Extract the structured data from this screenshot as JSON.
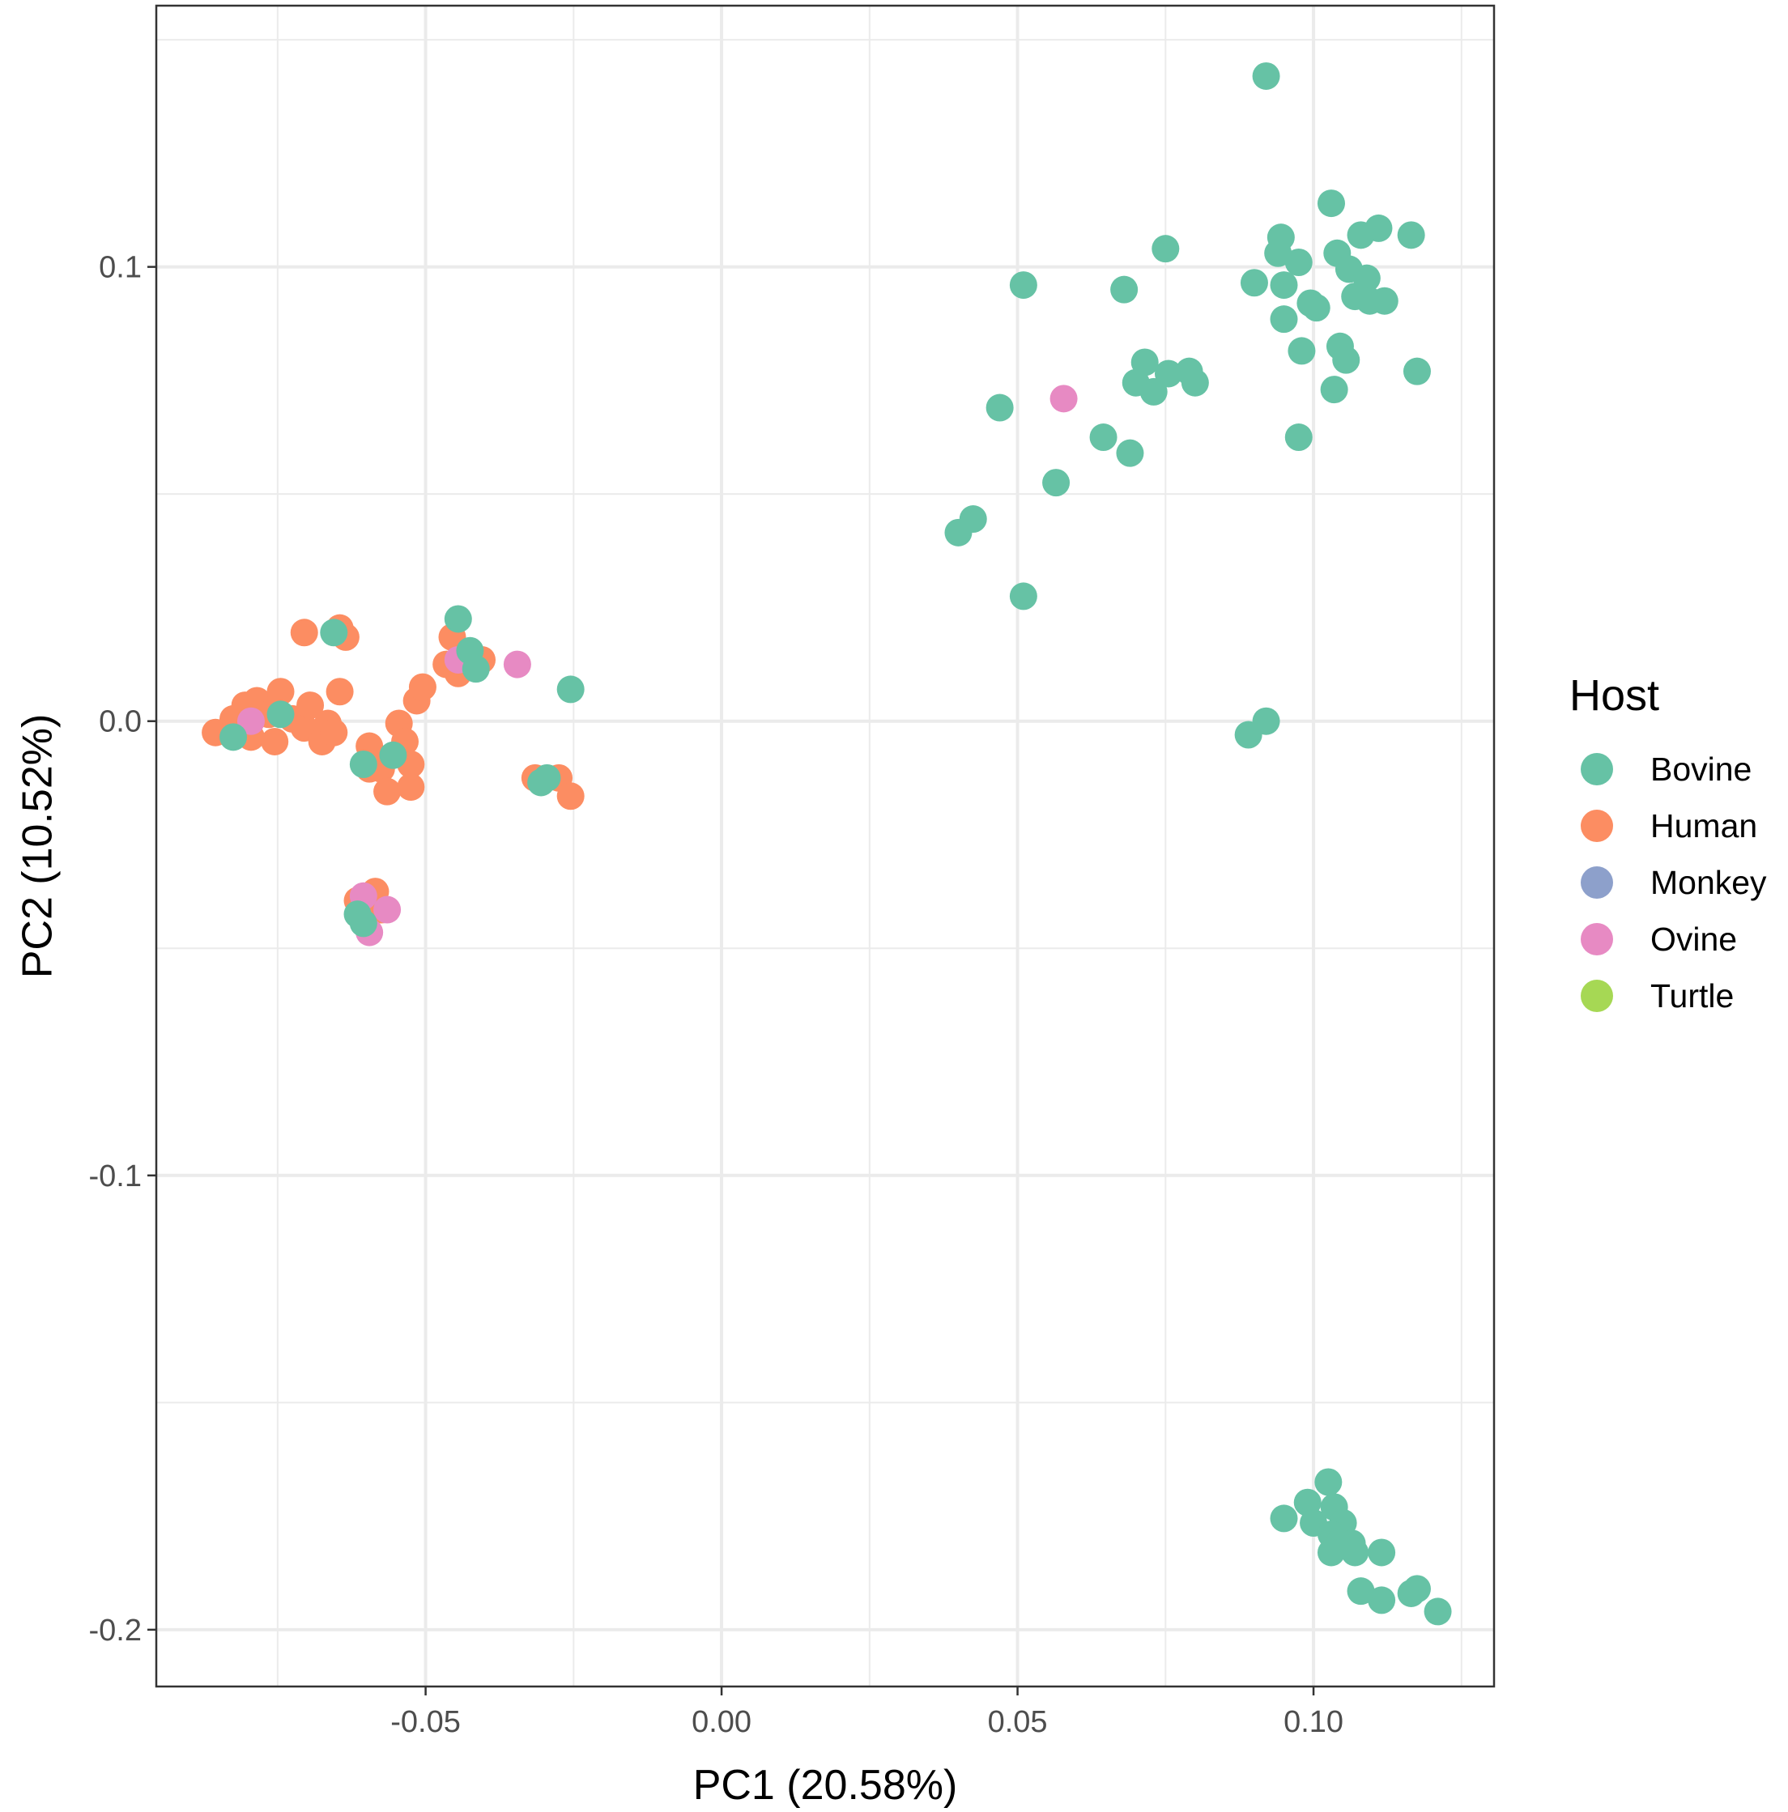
{
  "chart_data": {
    "type": "scatter",
    "xlabel": "PC1 (20.58%)",
    "ylabel": "PC2 (10.52%)",
    "xlim": [
      -0.0955,
      0.1305
    ],
    "ylim": [
      -0.2125,
      0.1575
    ],
    "x_major_ticks": [
      -0.05,
      0.0,
      0.05,
      0.1
    ],
    "x_tick_labels": [
      "-0.05",
      "0.00",
      "0.05",
      "0.10"
    ],
    "x_minor_ticks": [
      -0.075,
      -0.025,
      0.025,
      0.075,
      0.125
    ],
    "y_major_ticks": [
      -0.2,
      -0.1,
      0.0,
      0.1
    ],
    "y_tick_labels": [
      "-0.2",
      "-0.1",
      "0.0",
      "0.1"
    ],
    "y_minor_ticks": [
      -0.15,
      -0.05,
      0.05,
      0.15
    ],
    "grid": true,
    "legend": {
      "title": "Host",
      "position": "right",
      "entries": [
        {
          "label": "Bovine",
          "color": "#66c2a5"
        },
        {
          "label": "Human",
          "color": "#fc8d62"
        },
        {
          "label": "Monkey",
          "color": "#8da0cb"
        },
        {
          "label": "Ovine",
          "color": "#e78ac3"
        },
        {
          "label": "Turtle",
          "color": "#a6d854"
        }
      ]
    },
    "series": [
      {
        "name": "Human",
        "color": "#fc8d62",
        "points": [
          [
            -0.0855,
            -0.0025
          ],
          [
            -0.0825,
            0.0005
          ],
          [
            -0.0805,
            0.0035
          ],
          [
            -0.0785,
            0.0045
          ],
          [
            -0.0795,
            -0.0035
          ],
          [
            -0.0765,
            0.0015
          ],
          [
            -0.0755,
            -0.0045
          ],
          [
            -0.0745,
            0.0065
          ],
          [
            -0.0725,
            0.0005
          ],
          [
            -0.0705,
            -0.0015
          ],
          [
            -0.0695,
            0.0035
          ],
          [
            -0.0675,
            -0.0045
          ],
          [
            -0.0665,
            -0.0005
          ],
          [
            -0.0655,
            -0.0025
          ],
          [
            -0.0645,
            0.0065
          ],
          [
            -0.0705,
            0.0195
          ],
          [
            -0.0645,
            0.0205
          ],
          [
            -0.0635,
            0.0185
          ],
          [
            -0.0595,
            -0.0055
          ],
          [
            -0.0595,
            -0.0105
          ],
          [
            -0.0575,
            -0.0105
          ],
          [
            -0.0565,
            -0.0155
          ],
          [
            -0.0545,
            -0.0005
          ],
          [
            -0.0535,
            -0.0045
          ],
          [
            -0.0525,
            -0.0095
          ],
          [
            -0.0525,
            -0.0145
          ],
          [
            -0.0515,
            0.0045
          ],
          [
            -0.0505,
            0.0075
          ],
          [
            -0.0465,
            0.0125
          ],
          [
            -0.0455,
            0.0185
          ],
          [
            -0.0445,
            0.0105
          ],
          [
            -0.0405,
            0.0135
          ],
          [
            -0.0315,
            -0.0125
          ],
          [
            -0.0275,
            -0.0125
          ],
          [
            -0.0255,
            -0.0165
          ],
          [
            -0.0615,
            -0.0395
          ],
          [
            -0.0585,
            -0.0375
          ],
          [
            -0.0575,
            -0.0415
          ]
        ]
      },
      {
        "name": "Ovine",
        "color": "#e78ac3",
        "points": [
          [
            -0.0795,
            0.0
          ],
          [
            -0.0445,
            0.0135
          ],
          [
            -0.0345,
            0.0125
          ],
          [
            -0.0605,
            -0.0385
          ],
          [
            -0.0565,
            -0.0415
          ],
          [
            -0.0595,
            -0.0465
          ],
          [
            0.0578,
            0.071
          ]
        ]
      },
      {
        "name": "Bovine",
        "color": "#66c2a5",
        "points": [
          [
            -0.0825,
            -0.0035
          ],
          [
            -0.0745,
            0.0015
          ],
          [
            -0.0655,
            0.0195
          ],
          [
            -0.0605,
            -0.0095
          ],
          [
            -0.0555,
            -0.0075
          ],
          [
            -0.0445,
            0.0225
          ],
          [
            -0.0425,
            0.0155
          ],
          [
            -0.0415,
            0.0115
          ],
          [
            -0.0295,
            -0.0125
          ],
          [
            -0.0305,
            -0.0135
          ],
          [
            -0.0255,
            0.007
          ],
          [
            -0.0615,
            -0.0425
          ],
          [
            -0.0605,
            -0.0445
          ],
          [
            0.092,
            0.142
          ],
          [
            0.103,
            0.114
          ],
          [
            0.111,
            0.1085
          ],
          [
            0.1165,
            0.107
          ],
          [
            0.108,
            0.107
          ],
          [
            0.0945,
            0.1065
          ],
          [
            0.075,
            0.104
          ],
          [
            0.094,
            0.103
          ],
          [
            0.104,
            0.103
          ],
          [
            0.0975,
            0.101
          ],
          [
            0.106,
            0.0995
          ],
          [
            0.109,
            0.0975
          ],
          [
            0.09,
            0.0965
          ],
          [
            0.095,
            0.096
          ],
          [
            0.051,
            0.096
          ],
          [
            0.068,
            0.095
          ],
          [
            0.107,
            0.0935
          ],
          [
            0.1095,
            0.0925
          ],
          [
            0.112,
            0.0925
          ],
          [
            0.0995,
            0.092
          ],
          [
            0.1005,
            0.091
          ],
          [
            0.095,
            0.0885
          ],
          [
            0.1045,
            0.0825
          ],
          [
            0.098,
            0.0815
          ],
          [
            0.1055,
            0.0795
          ],
          [
            0.0715,
            0.079
          ],
          [
            0.0755,
            0.0765
          ],
          [
            0.079,
            0.077
          ],
          [
            0.1175,
            0.077
          ],
          [
            0.07,
            0.0745
          ],
          [
            0.08,
            0.0745
          ],
          [
            0.073,
            0.0725
          ],
          [
            0.1035,
            0.073
          ],
          [
            0.047,
            0.069
          ],
          [
            0.0645,
            0.0625
          ],
          [
            0.0975,
            0.0625
          ],
          [
            0.069,
            0.059
          ],
          [
            0.0565,
            0.0525
          ],
          [
            0.0425,
            0.0445
          ],
          [
            0.04,
            0.0415
          ],
          [
            0.051,
            0.0275
          ],
          [
            0.092,
            0.0
          ],
          [
            0.089,
            -0.003
          ],
          [
            0.1025,
            -0.1675
          ],
          [
            0.099,
            -0.172
          ],
          [
            0.1035,
            -0.173
          ],
          [
            0.095,
            -0.1755
          ],
          [
            0.1,
            -0.1765
          ],
          [
            0.105,
            -0.1765
          ],
          [
            0.103,
            -0.179
          ],
          [
            0.1045,
            -0.1805
          ],
          [
            0.103,
            -0.183
          ],
          [
            0.1065,
            -0.181
          ],
          [
            0.107,
            -0.183
          ],
          [
            0.1115,
            -0.183
          ],
          [
            0.108,
            -0.1915
          ],
          [
            0.1115,
            -0.1935
          ],
          [
            0.1165,
            -0.192
          ],
          [
            0.1175,
            -0.191
          ],
          [
            0.121,
            -0.196
          ]
        ]
      }
    ]
  }
}
